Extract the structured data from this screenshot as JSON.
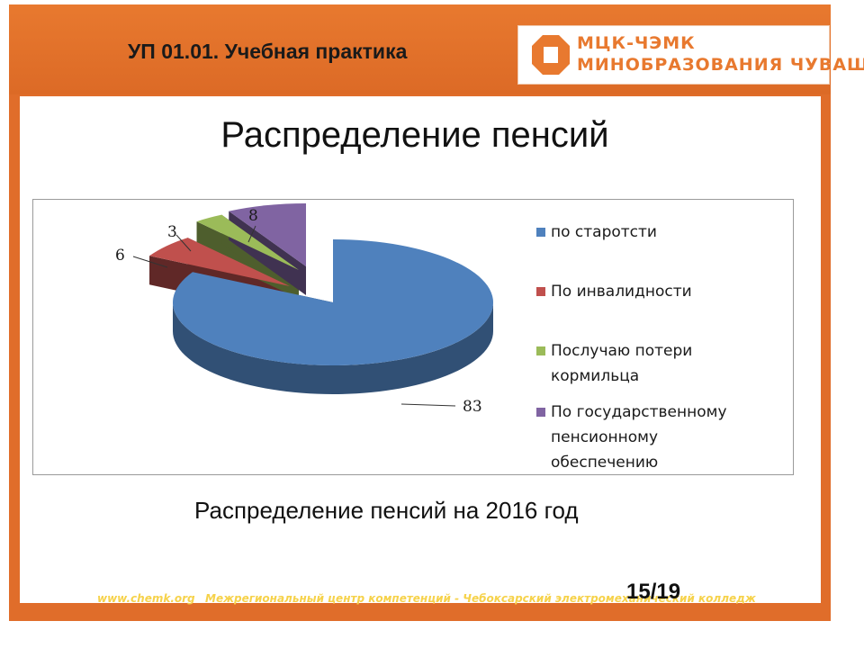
{
  "header": {
    "course_title": "УП 01.01. Учебная практика",
    "logo_line1": "МЦК-ЧЭМК",
    "logo_line2": "МИНОБРАЗОВАНИЯ ЧУВАШИИ"
  },
  "slide": {
    "title": "Распределение пенсий",
    "caption": "Распределение пенсий на 2016 год",
    "page_number": "15/19"
  },
  "footer": {
    "url": "www.chemk.org",
    "text": "Межрегиональный центр компетенций - Чебоксарский электромеханический колледж"
  },
  "colors": {
    "accent": "#e06d2a",
    "footer_text": "#f6d24a"
  },
  "chart_data": {
    "type": "pie",
    "style": "3d-exploded",
    "legend_position": "right",
    "series": [
      {
        "name": "по старотсти",
        "value": 83,
        "color": "#4f81bd"
      },
      {
        "name": "По инвалидности",
        "value": 6,
        "color": "#c0504d"
      },
      {
        "name": "Послучаю потери кормильца",
        "value": 3,
        "color": "#9bbb59"
      },
      {
        "name": "По государственному пенсионному обеспечению",
        "value": 8,
        "color": "#8064a2"
      }
    ]
  }
}
